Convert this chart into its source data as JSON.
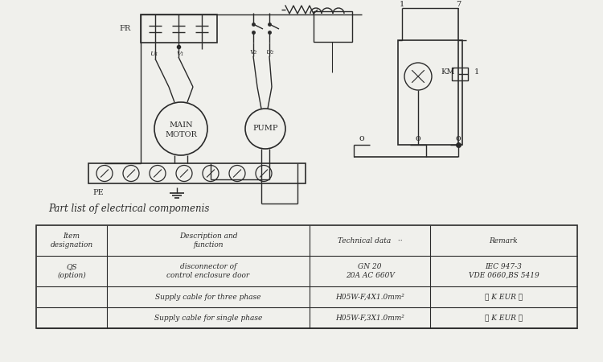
{
  "bg_color": "#f0f0ec",
  "line_color": "#2a2a2a",
  "table_title": "Part list of electrical compomenis",
  "table_headers": [
    "Item\ndesignation",
    "Description and\nfunction",
    "Technical data   ··",
    "Remark"
  ],
  "row0": [
    "QS\n(option)",
    "disconnector of\ncontrol enclosure door",
    "GN 20\n20A AC 660V",
    "IEC 947-3\nVDE 0660,BS 5419"
  ],
  "row1": [
    "",
    "Supply cable for three phase",
    "H05W-F,4X1.0mm²",
    "⚠ K EUR ⓢ"
  ],
  "row2": [
    "",
    "Supply cable for single phase",
    "H05W-F,3X1.0mm²",
    "⚠ K EUR ⓢ"
  ]
}
